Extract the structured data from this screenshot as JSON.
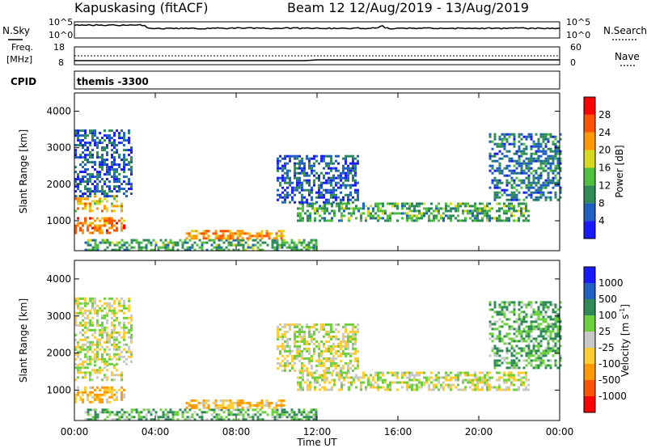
{
  "header": {
    "station": "Kapuskasing (fitACF)",
    "beam_and_dates": "Beam 12  12/Aug/2019 - 13/Aug/2019"
  },
  "left_labels": {
    "nsky": "N.Sky",
    "freq": "Freq.",
    "freq_unit": "[MHz]",
    "cpid": "CPID"
  },
  "right_labels": {
    "nsearch": "N.Search",
    "nave": "Nave"
  },
  "noise_axis": {
    "top": "10^5",
    "bottom": "10^0"
  },
  "freq_axis": {
    "top": "18",
    "bottom": "8"
  },
  "nave_axis": {
    "top": "60",
    "bottom": "0"
  },
  "cpid_text": "themis -3300",
  "x_axis": {
    "label": "Time UT",
    "ticks": [
      "00:00",
      "04:00",
      "08:00",
      "12:00",
      "16:00",
      "20:00",
      "00:00"
    ]
  },
  "y_axis": {
    "label": "Slant Range [km]",
    "ticks": [
      "1000",
      "2000",
      "3000",
      "4000"
    ]
  },
  "power_scale": {
    "label": "Power [dB]",
    "ticks": [
      "4",
      "8",
      "12",
      "16",
      "20",
      "24",
      "28"
    ],
    "colors": [
      "#1a1aff",
      "#1f5fbf",
      "#2e8b57",
      "#4fbf3f",
      "#d8d820",
      "#ff9900",
      "#ff5500",
      "#ff0000"
    ]
  },
  "velocity_scale": {
    "label": "Velocity [m s",
    "unit_exp": "-1",
    "unit_end": "]",
    "ticks": [
      "1000",
      "500",
      "100",
      "25",
      "-25",
      "-100",
      "-500",
      "-1000"
    ],
    "colors": [
      "#1a1aff",
      "#1f5fbf",
      "#2e8b57",
      "#6cd13c",
      "#c8c8c8",
      "#ffcc33",
      "#ff9900",
      "#ff5500",
      "#ff0000"
    ]
  },
  "chart_data": {
    "type": "heatmap",
    "x_range_hours": [
      0,
      24
    ],
    "y_range_km": [
      180,
      4500
    ],
    "regions": [
      {
        "name": "early-near",
        "t0": 0.0,
        "t1": 2.5,
        "r0": 700,
        "r1": 1100,
        "power": 24,
        "velocity": -100
      },
      {
        "name": "early-mid",
        "t0": 0.0,
        "t1": 2.3,
        "r0": 1300,
        "r1": 1700,
        "power": 20,
        "velocity": 0
      },
      {
        "name": "early-far",
        "t0": 0.0,
        "t1": 2.8,
        "r0": 1700,
        "r1": 3500,
        "power": 6,
        "velocity": 0
      },
      {
        "name": "ground-near",
        "t0": 0.5,
        "t1": 12.0,
        "r0": 200,
        "r1": 500,
        "power": 12,
        "velocity": 100
      },
      {
        "name": "noon-band",
        "t0": 5.5,
        "t1": 10.5,
        "r0": 500,
        "r1": 750,
        "power": 22,
        "velocity": -100
      },
      {
        "name": "afternoon-band",
        "t0": 11.0,
        "t1": 22.5,
        "r0": 1000,
        "r1": 1500,
        "power": 12,
        "velocity": 0
      },
      {
        "name": "afternoon-rise",
        "t0": 10.0,
        "t1": 14.0,
        "r0": 1500,
        "r1": 2800,
        "power": 6,
        "velocity": 0
      },
      {
        "name": "evening-far",
        "t0": 20.5,
        "t1": 24.0,
        "r0": 1600,
        "r1": 3400,
        "power": 8,
        "velocity": 100
      }
    ]
  }
}
